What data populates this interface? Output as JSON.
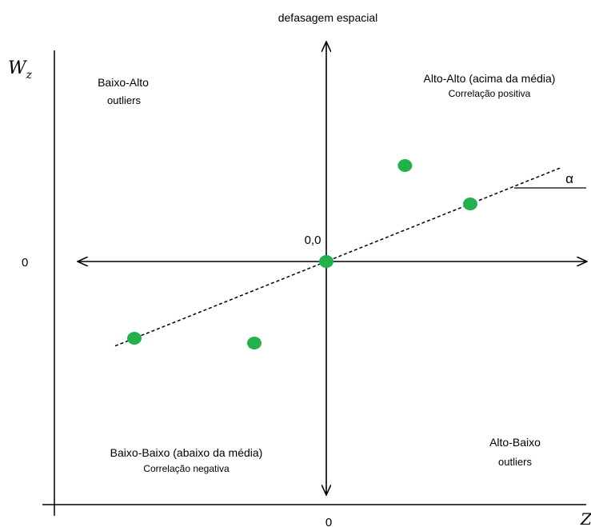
{
  "figure": {
    "top_label": "defasagem espacial",
    "y_axis_label": "W",
    "y_axis_label_sub": "z",
    "x_axis_label": "Z",
    "y_zero_label": "0",
    "x_zero_label": "0",
    "origin_label": "0,0",
    "angle_label": "α",
    "quadrants": {
      "top_left": {
        "title": "Baixo-Alto",
        "subtitle": "outliers"
      },
      "top_right": {
        "title": "Alto-Alto (acima da média)",
        "subtitle": "Correlação positiva"
      },
      "bottom_left": {
        "title": "Baixo-Baixo (abaixo da média)",
        "subtitle": "Correlação negativa"
      },
      "bottom_right": {
        "title": "Alto-Baixo",
        "subtitle": "outliers"
      }
    },
    "colors": {
      "point": "#22b14c",
      "line": "#000000"
    }
  },
  "chart_data": {
    "type": "scatter",
    "points": [
      {
        "x": -2.0,
        "y": -0.8
      },
      {
        "x": -0.75,
        "y": -0.85
      },
      {
        "x": 0.0,
        "y": 0.0
      },
      {
        "x": 0.82,
        "y": 1.0
      },
      {
        "x": 1.5,
        "y": 0.6
      }
    ],
    "trend_line": {
      "x_start": -2.2,
      "x_end": 2.45,
      "slope": 0.4
    },
    "xlim": [
      -2.6,
      2.6
    ],
    "ylim": [
      -2.2,
      2.2
    ]
  }
}
